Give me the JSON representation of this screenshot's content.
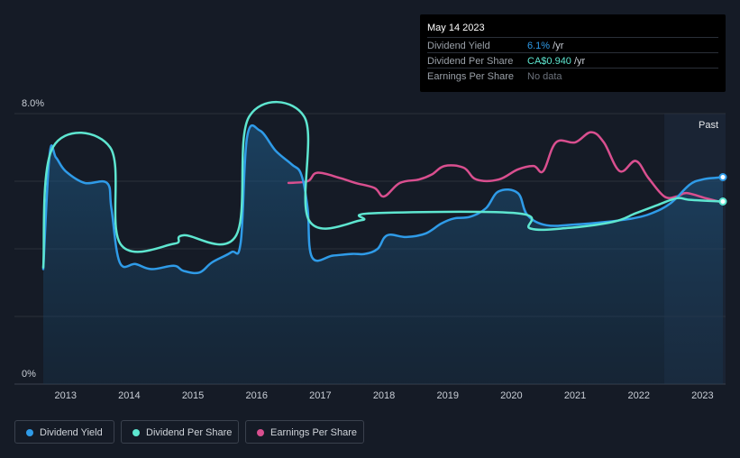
{
  "tooltip": {
    "date": "May 14 2023",
    "rows": [
      {
        "label": "Dividend Yield",
        "value": "6.1%",
        "unit": " /yr",
        "color": "#2f9be8"
      },
      {
        "label": "Dividend Per Share",
        "value": "CA$0.940",
        "unit": " /yr",
        "color": "#5ee6d0"
      },
      {
        "label": "Earnings Per Share",
        "value": "No data",
        "unit": "",
        "color": "#6c727c"
      }
    ]
  },
  "legend": [
    {
      "label": "Dividend Yield",
      "color": "#2f9be8"
    },
    {
      "label": "Dividend Per Share",
      "color": "#5ee6d0"
    },
    {
      "label": "Earnings Per Share",
      "color": "#d94f8f"
    }
  ],
  "chart_data": {
    "type": "line",
    "y_ticks": [
      "8.0%",
      "0%"
    ],
    "ylim": [
      0,
      8
    ],
    "xlim": [
      2012.6,
      2023.35
    ],
    "x_tick_labels": [
      "2013",
      "2014",
      "2015",
      "2016",
      "2017",
      "2018",
      "2019",
      "2020",
      "2021",
      "2022",
      "2023"
    ],
    "x_ticks": [
      2013,
      2014,
      2015,
      2016,
      2017,
      2018,
      2019,
      2020,
      2021,
      2022,
      2023
    ],
    "past_label": "Past",
    "past_start": 2022.4,
    "series": [
      {
        "name": "Dividend Yield",
        "color": "#2f9be8",
        "area": true,
        "points": [
          [
            2012.65,
            3.4
          ],
          [
            2012.75,
            6.8
          ],
          [
            2012.85,
            6.7
          ],
          [
            2013.0,
            6.3
          ],
          [
            2013.3,
            5.95
          ],
          [
            2013.65,
            5.95
          ],
          [
            2013.72,
            5.2
          ],
          [
            2013.85,
            3.6
          ],
          [
            2014.1,
            3.55
          ],
          [
            2014.35,
            3.4
          ],
          [
            2014.7,
            3.5
          ],
          [
            2014.85,
            3.35
          ],
          [
            2015.1,
            3.3
          ],
          [
            2015.3,
            3.6
          ],
          [
            2015.6,
            3.9
          ],
          [
            2015.75,
            4.2
          ],
          [
            2015.85,
            7.3
          ],
          [
            2016.05,
            7.5
          ],
          [
            2016.3,
            6.9
          ],
          [
            2016.55,
            6.5
          ],
          [
            2016.7,
            6.2
          ],
          [
            2016.8,
            5.2
          ],
          [
            2016.87,
            3.75
          ],
          [
            2017.2,
            3.8
          ],
          [
            2017.5,
            3.85
          ],
          [
            2017.7,
            3.85
          ],
          [
            2017.9,
            4.0
          ],
          [
            2018.05,
            4.4
          ],
          [
            2018.35,
            4.35
          ],
          [
            2018.65,
            4.45
          ],
          [
            2018.9,
            4.75
          ],
          [
            2019.1,
            4.9
          ],
          [
            2019.35,
            4.95
          ],
          [
            2019.6,
            5.2
          ],
          [
            2019.8,
            5.7
          ],
          [
            2020.1,
            5.65
          ],
          [
            2020.25,
            5.0
          ],
          [
            2020.55,
            4.7
          ],
          [
            2021.0,
            4.72
          ],
          [
            2021.5,
            4.8
          ],
          [
            2021.9,
            4.9
          ],
          [
            2022.2,
            5.05
          ],
          [
            2022.5,
            5.35
          ],
          [
            2022.8,
            5.9
          ],
          [
            2023.0,
            6.05
          ],
          [
            2023.2,
            6.1
          ],
          [
            2023.32,
            6.12
          ]
        ]
      },
      {
        "name": "Dividend Per Share",
        "color": "#5ee6d0",
        "area": false,
        "points": [
          [
            2012.65,
            3.45
          ],
          [
            2012.8,
            7.0
          ],
          [
            2013.7,
            7.0
          ],
          [
            2013.86,
            4.15
          ],
          [
            2014.7,
            4.15
          ],
          [
            2014.85,
            4.4
          ],
          [
            2015.68,
            4.4
          ],
          [
            2015.88,
            7.9
          ],
          [
            2016.75,
            7.9
          ],
          [
            2016.82,
            4.85
          ],
          [
            2017.65,
            4.85
          ],
          [
            2017.8,
            5.05
          ],
          [
            2020.1,
            5.05
          ],
          [
            2020.3,
            4.6
          ],
          [
            2020.9,
            4.62
          ],
          [
            2021.6,
            4.8
          ],
          [
            2021.95,
            5.05
          ],
          [
            2022.3,
            5.3
          ],
          [
            2022.6,
            5.5
          ],
          [
            2022.8,
            5.45
          ],
          [
            2023.32,
            5.4
          ]
        ]
      },
      {
        "name": "Earnings Per Share",
        "color": "#d94f8f",
        "area": false,
        "points": [
          [
            2016.5,
            5.95
          ],
          [
            2016.8,
            6.0
          ],
          [
            2016.95,
            6.25
          ],
          [
            2017.3,
            6.1
          ],
          [
            2017.55,
            5.95
          ],
          [
            2017.85,
            5.8
          ],
          [
            2018.0,
            5.55
          ],
          [
            2018.25,
            5.95
          ],
          [
            2018.55,
            6.05
          ],
          [
            2018.75,
            6.2
          ],
          [
            2018.95,
            6.45
          ],
          [
            2019.25,
            6.4
          ],
          [
            2019.45,
            6.05
          ],
          [
            2019.8,
            6.05
          ],
          [
            2020.1,
            6.35
          ],
          [
            2020.35,
            6.45
          ],
          [
            2020.5,
            6.3
          ],
          [
            2020.7,
            7.15
          ],
          [
            2021.0,
            7.15
          ],
          [
            2021.25,
            7.45
          ],
          [
            2021.45,
            7.15
          ],
          [
            2021.7,
            6.3
          ],
          [
            2021.95,
            6.6
          ],
          [
            2022.15,
            6.1
          ],
          [
            2022.4,
            5.55
          ],
          [
            2022.6,
            5.55
          ],
          [
            2022.75,
            5.65
          ],
          [
            2023.05,
            5.5
          ],
          [
            2023.25,
            5.4
          ]
        ]
      }
    ]
  }
}
